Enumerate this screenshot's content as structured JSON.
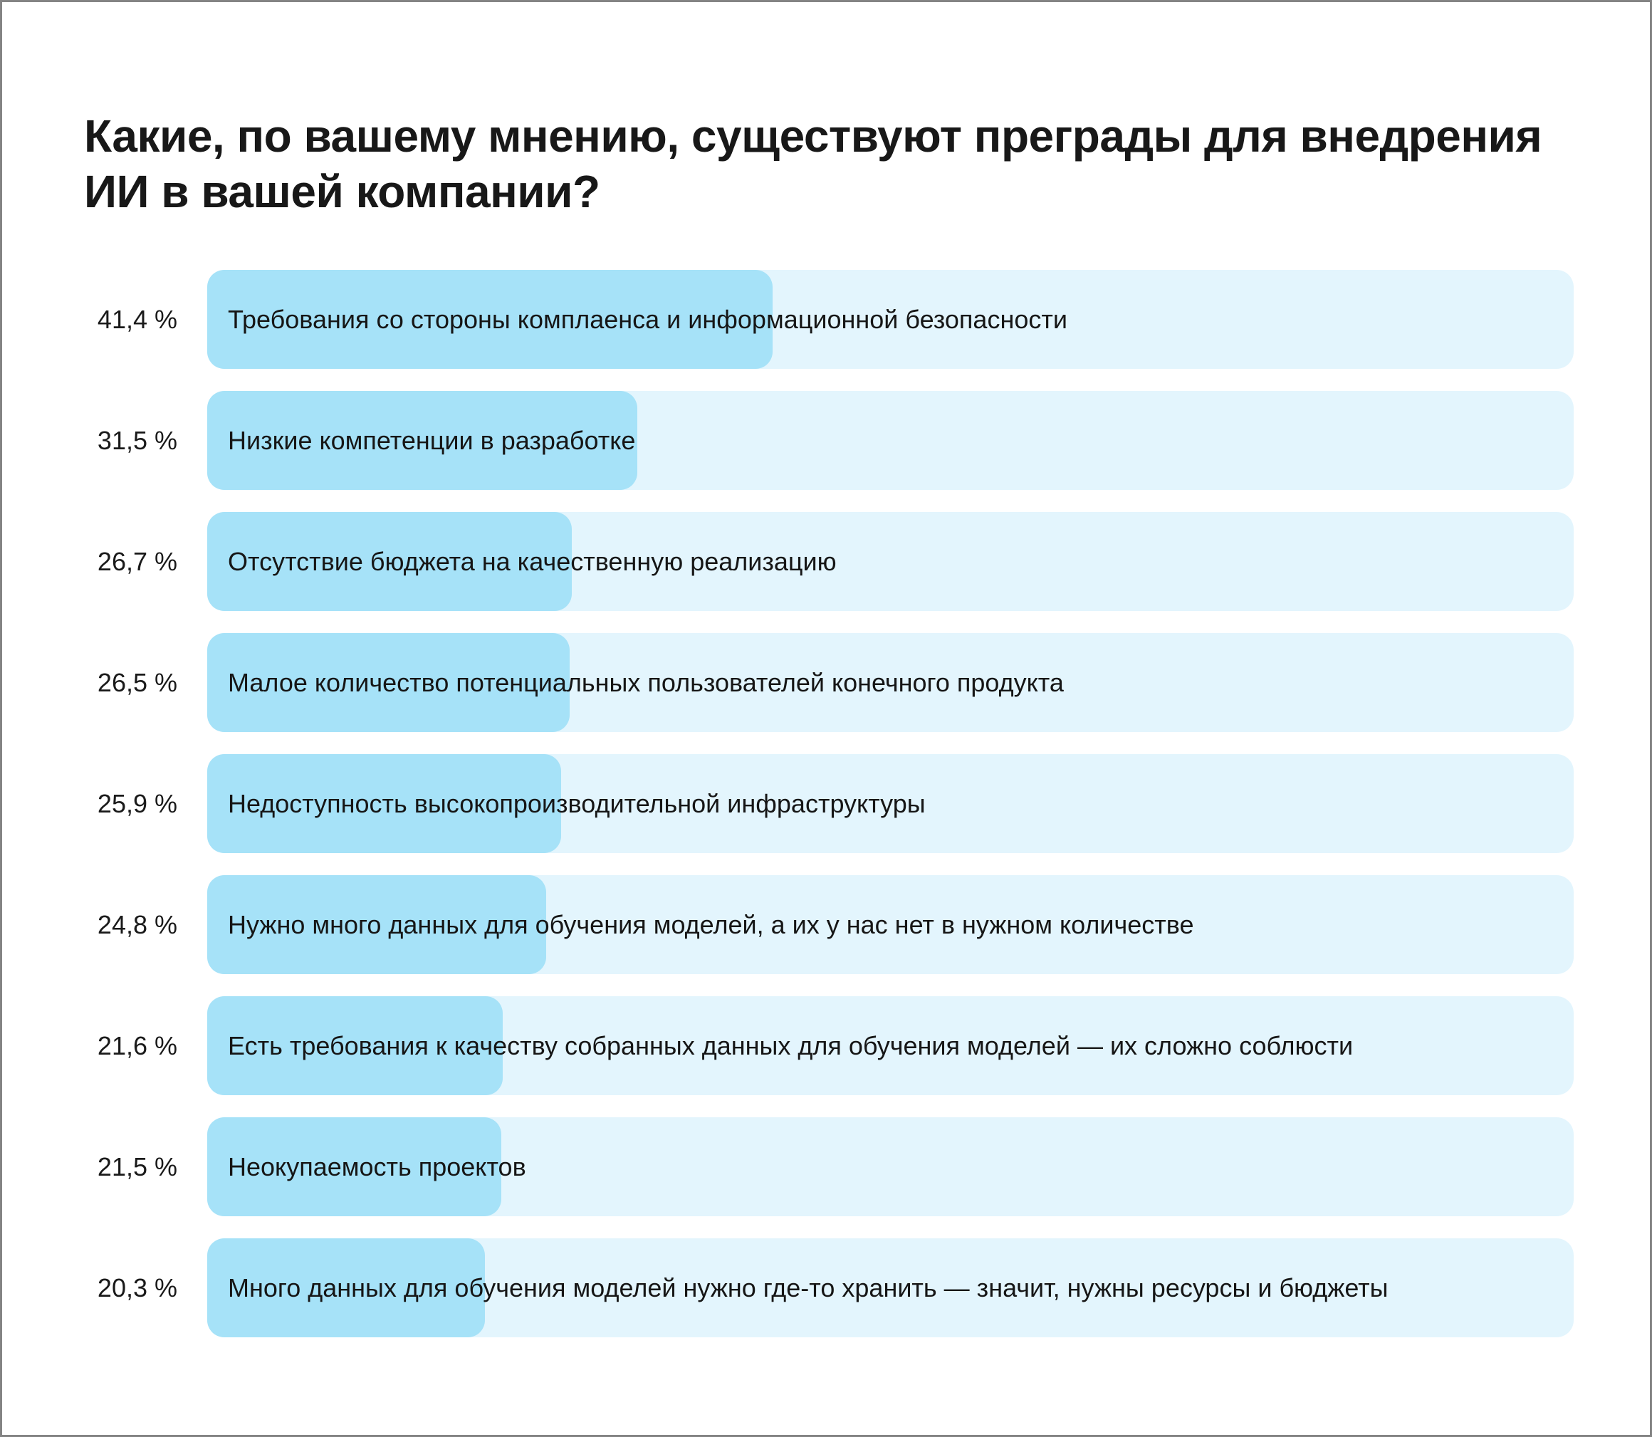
{
  "frame": {
    "background": "#ffffff",
    "border_color": "#848484"
  },
  "title_lines": [
    "Какие, по вашему мнению, существуют преграды для внедрения",
    "ИИ в вашей компании?"
  ],
  "chart_data": {
    "type": "bar",
    "orientation": "horizontal",
    "title": "Какие, по вашему мнению, существуют преграды для внедрения ИИ в вашей компании?",
    "categories": [
      "Требования со стороны комплаенса и информационной безопасности",
      "Низкие компетенции в разработке",
      "Отсутствие бюджета на качественную реализацию",
      "Малое количество потенциальных пользователей конечного продукта",
      "Недоступность высокопроизводительной инфраструктуры",
      "Нужно много данных для обучения моделей, а их у нас нет в нужном количестве",
      "Есть требования к качеству собранных данных для обучения моделей — их сложно соблюсти",
      "Неокупаемость проектов",
      "Много данных для обучения моделей нужно где-то хранить — значит, нужны ресурсы и бюджеты"
    ],
    "values": [
      41.4,
      31.5,
      26.7,
      26.5,
      25.9,
      24.8,
      21.6,
      21.5,
      20.3
    ],
    "value_labels": [
      "41,4 %",
      "31,5 %",
      "26,7 %",
      "26,5 %",
      "25,9 %",
      "24,8 %",
      "21,6 %",
      "21,5 %",
      "20,3 %"
    ],
    "xlim": [
      0,
      100
    ],
    "grid": false,
    "legend": "none",
    "bar_color": "#a6e2f8",
    "track_color": "#e3f5fd",
    "text_color": "#1a1a1a"
  }
}
